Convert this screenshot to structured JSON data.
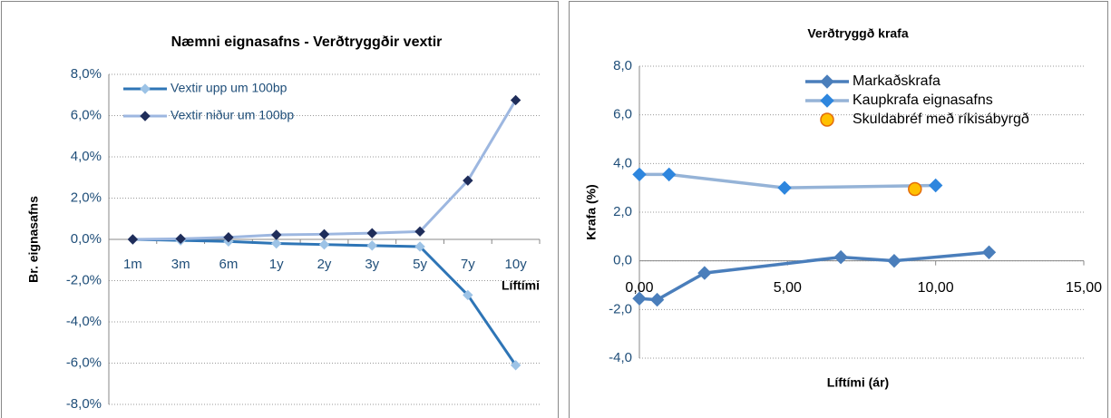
{
  "chart_data": [
    {
      "type": "line",
      "title": "Næmni eignasafns - Verðtryggðir vextir",
      "y_label": "Br. eignasafns",
      "x_label": "Líftími",
      "categories": [
        "1m",
        "3m",
        "6m",
        "1y",
        "2y",
        "3y",
        "5y",
        "7y",
        "10y"
      ],
      "series": [
        {
          "name": "Vextir upp um 100bp",
          "color": "#2E75B6",
          "marker_color": "#9DC3E6",
          "values": [
            0,
            -0.05,
            -0.1,
            -0.2,
            -0.25,
            -0.3,
            -0.35,
            -2.7,
            -6.1
          ]
        },
        {
          "name": "Vextir niður um 100bp",
          "color": "#9DB7E0",
          "marker_color": "#1F2D5A",
          "values": [
            0,
            0.03,
            0.1,
            0.22,
            0.25,
            0.3,
            0.38,
            2.85,
            6.75
          ]
        }
      ],
      "ylim": [
        -8,
        8
      ],
      "yticks": [
        {
          "value": -8,
          "label": "-8,0%"
        },
        {
          "value": -6,
          "label": "-6,0%"
        },
        {
          "value": -4,
          "label": "-4,0%"
        },
        {
          "value": -2,
          "label": "-2,0%"
        },
        {
          "value": 0,
          "label": "0,0%"
        },
        {
          "value": 2,
          "label": "2,0%"
        },
        {
          "value": 4,
          "label": "4,0%"
        },
        {
          "value": 6,
          "label": "6,0%"
        },
        {
          "value": 8,
          "label": "8,0%"
        }
      ],
      "grid": true
    },
    {
      "type": "scatter",
      "title": "Verðtryggð krafa",
      "y_label": "Krafa (%)",
      "x_label": "Líftími (ár)",
      "series": [
        {
          "name": "Markaðskrafa",
          "color": "#4A7EBB",
          "marker_color": "#4A7EBB",
          "x": [
            0,
            0.6,
            2.2,
            6.8,
            8.6,
            11.8
          ],
          "values": [
            -1.55,
            -1.6,
            -0.5,
            0.15,
            0.0,
            0.35
          ]
        },
        {
          "name": "Kaupkrafa eignasafns",
          "color": "#95B3D7",
          "marker_color": "#2E86DE",
          "x": [
            0,
            1,
            4.9,
            10
          ],
          "values": [
            3.55,
            3.55,
            3.0,
            3.1
          ]
        },
        {
          "name": "Skuldabréf með ríkisábyrgð",
          "color": null,
          "marker_color": "#FFC000",
          "x": [
            9.3
          ],
          "values": [
            2.95
          ]
        }
      ],
      "xlim": [
        0,
        15
      ],
      "xticks": [
        {
          "value": 0,
          "label": "0,00"
        },
        {
          "value": 5,
          "label": "5,00"
        },
        {
          "value": 10,
          "label": "10,00"
        },
        {
          "value": 15,
          "label": "15,00"
        }
      ],
      "ylim": [
        -4,
        8
      ],
      "yticks": [
        {
          "value": -4,
          "label": "-4,0"
        },
        {
          "value": -2,
          "label": "-2,0"
        },
        {
          "value": 0,
          "label": "0,0"
        },
        {
          "value": 2,
          "label": "2,0"
        },
        {
          "value": 4,
          "label": "4,0"
        },
        {
          "value": 6,
          "label": "6,0"
        },
        {
          "value": 8,
          "label": "8,0"
        }
      ],
      "grid": true
    }
  ]
}
